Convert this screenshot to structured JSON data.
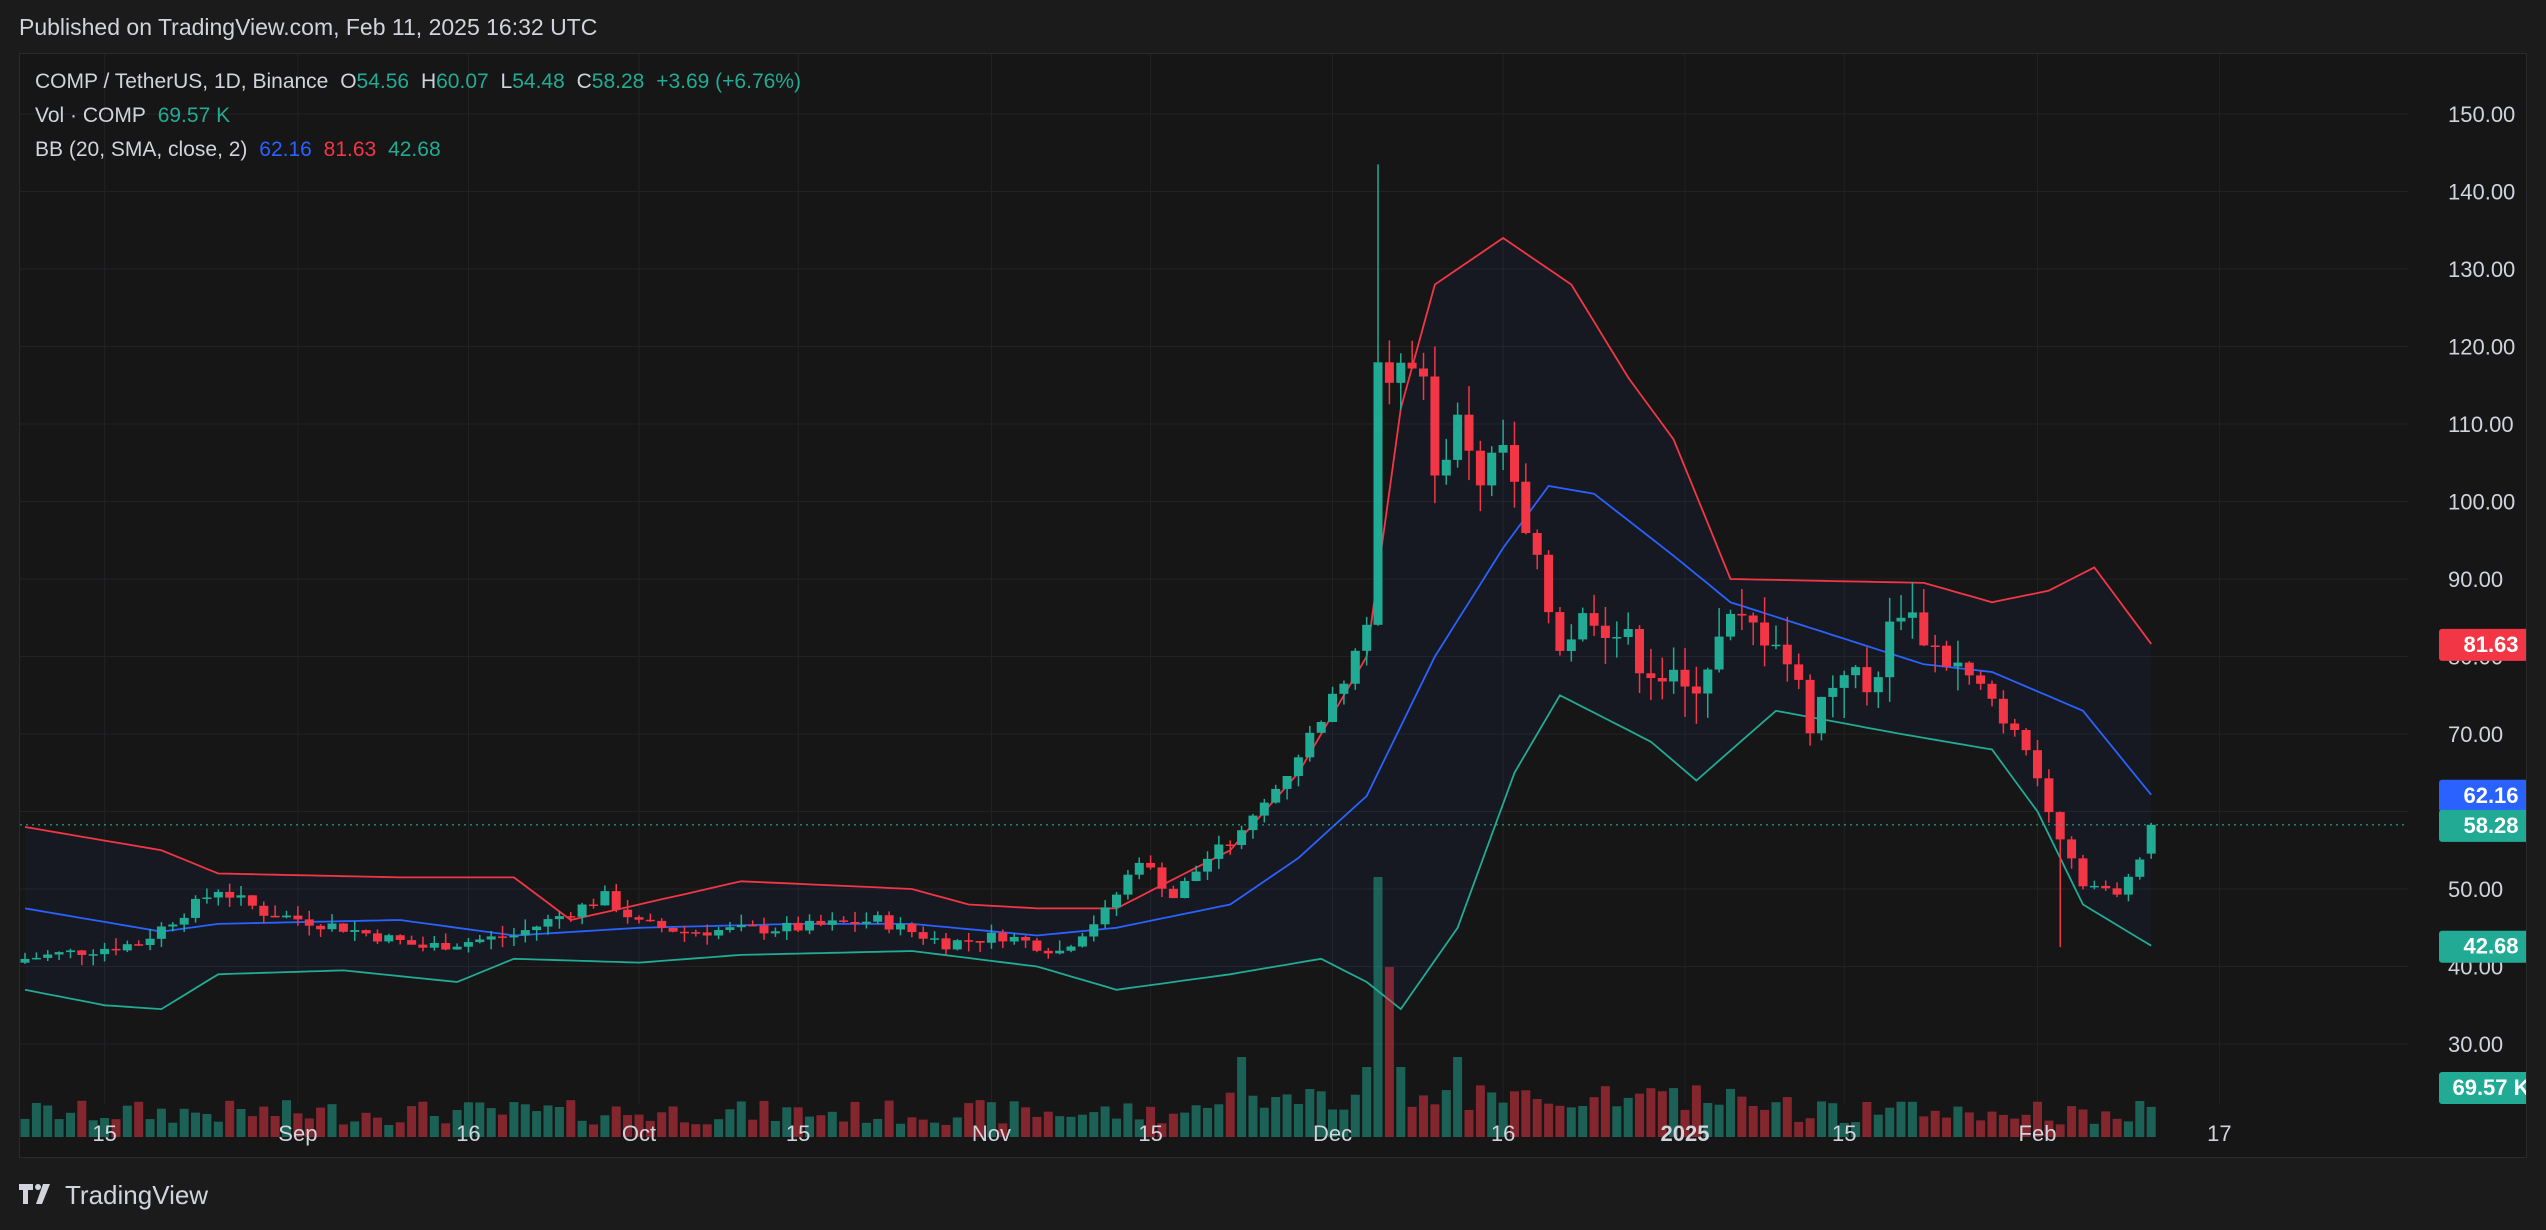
{
  "header": {
    "published": "Published on TradingView.com, Feb 11, 2025 16:32 UTC"
  },
  "legend": {
    "symbol": "COMP / TetherUS, 1D, Binance",
    "o_label": "O",
    "o": "54.56",
    "h_label": "H",
    "h": "60.07",
    "l_label": "L",
    "l": "54.48",
    "c_label": "C",
    "c": "58.28",
    "change": "+3.69 (+6.76%)",
    "vol_label": "Vol · COMP",
    "vol": "69.57 K",
    "bb_label": "BB (20, SMA, close, 2)",
    "bb_basis": "62.16",
    "bb_upper": "81.63",
    "bb_lower": "42.68"
  },
  "footer": {
    "logo": "TradingView"
  },
  "colors": {
    "up": "#22ab94",
    "down": "#f23645",
    "basis": "#2962ff",
    "upper": "#f23645",
    "lower": "#22ab94",
    "background": "#161617"
  },
  "chart_data": {
    "type": "candlestick",
    "title": "COMP / TetherUS, 1D, Binance",
    "price_axis": {
      "ticks": [
        150,
        140,
        130,
        120,
        110,
        100,
        90,
        80,
        70,
        60,
        50,
        40,
        30
      ],
      "tick_labels": [
        "150.00",
        "140.00",
        "130.00",
        "120.00",
        "110.00",
        "100.00",
        "90.00",
        "80.00",
        "70.00",
        "60.00",
        "50.00",
        "40.00",
        "30.00"
      ],
      "range": [
        24,
        154
      ]
    },
    "time_axis": {
      "labels": [
        "15",
        "Sep",
        "16",
        "Oct",
        "15",
        "Nov",
        "15",
        "Dec",
        "16",
        "2025",
        "15",
        "Feb",
        "17"
      ],
      "label_dates": [
        "2024-08-15",
        "2024-09-01",
        "2024-09-16",
        "2024-10-01",
        "2024-10-15",
        "2024-11-01",
        "2024-11-15",
        "2024-12-01",
        "2024-12-16",
        "2025-01-01",
        "2025-01-15",
        "2025-02-01",
        "2025-02-17"
      ],
      "range": [
        "2024-08-08",
        "2025-02-24"
      ]
    },
    "price_badges": [
      {
        "name": "BB upper",
        "value": "81.63",
        "color": "#f23645"
      },
      {
        "name": "BB basis",
        "value": "62.16",
        "color": "#2962ff"
      },
      {
        "name": "Last close",
        "value": "58.28",
        "color": "#22ab94"
      },
      {
        "name": "BB lower",
        "value": "42.68",
        "color": "#22ab94"
      },
      {
        "name": "Volume",
        "value": "69.57 K",
        "color": "#22ab94"
      }
    ],
    "last_close": 58.28,
    "upper_band_keys": [
      [
        "2024-08-08",
        58
      ],
      [
        "2024-08-20",
        55
      ],
      [
        "2024-08-25",
        52
      ],
      [
        "2024-09-10",
        51.5
      ],
      [
        "2024-09-20",
        51.5
      ],
      [
        "2024-09-25",
        46
      ],
      [
        "2024-10-01",
        48
      ],
      [
        "2024-10-10",
        51
      ],
      [
        "2024-10-25",
        50
      ],
      [
        "2024-10-30",
        48
      ],
      [
        "2024-11-05",
        47.5
      ],
      [
        "2024-11-12",
        47.5
      ],
      [
        "2024-11-22",
        55
      ],
      [
        "2024-11-28",
        65
      ],
      [
        "2024-12-04",
        80
      ],
      [
        "2024-12-07",
        112
      ],
      [
        "2024-12-10",
        128
      ],
      [
        "2024-12-16",
        134
      ],
      [
        "2024-12-22",
        128
      ],
      [
        "2024-12-27",
        116
      ],
      [
        "2024-12-31",
        108
      ],
      [
        "2025-01-05",
        90
      ],
      [
        "2025-01-22",
        89.5
      ],
      [
        "2025-01-28",
        87
      ],
      [
        "2025-02-02",
        88.5
      ],
      [
        "2025-02-06",
        91.5
      ],
      [
        "2025-02-11",
        81.63
      ]
    ],
    "basis_keys": [
      [
        "2024-08-08",
        47.5
      ],
      [
        "2024-08-20",
        44.5
      ],
      [
        "2024-08-25",
        45.5
      ],
      [
        "2024-09-10",
        46
      ],
      [
        "2024-09-20",
        44
      ],
      [
        "2024-10-01",
        45
      ],
      [
        "2024-10-15",
        45.5
      ],
      [
        "2024-10-25",
        45.5
      ],
      [
        "2024-11-05",
        44
      ],
      [
        "2024-11-12",
        45
      ],
      [
        "2024-11-22",
        48
      ],
      [
        "2024-11-28",
        54
      ],
      [
        "2024-12-04",
        62
      ],
      [
        "2024-12-10",
        80
      ],
      [
        "2024-12-16",
        94
      ],
      [
        "2024-12-20",
        102
      ],
      [
        "2024-12-24",
        101
      ],
      [
        "2024-12-31",
        93
      ],
      [
        "2025-01-05",
        87
      ],
      [
        "2025-01-22",
        79
      ],
      [
        "2025-01-28",
        78
      ],
      [
        "2025-02-05",
        73
      ],
      [
        "2025-02-11",
        62.16
      ]
    ],
    "lower_band_keys": [
      [
        "2024-08-08",
        37
      ],
      [
        "2024-08-15",
        35
      ],
      [
        "2024-08-20",
        34.5
      ],
      [
        "2024-08-25",
        39
      ],
      [
        "2024-09-05",
        39.5
      ],
      [
        "2024-09-15",
        38
      ],
      [
        "2024-09-20",
        41
      ],
      [
        "2024-10-01",
        40.5
      ],
      [
        "2024-10-10",
        41.5
      ],
      [
        "2024-10-25",
        42
      ],
      [
        "2024-11-05",
        40
      ],
      [
        "2024-11-12",
        37
      ],
      [
        "2024-11-22",
        39
      ],
      [
        "2024-11-30",
        41
      ],
      [
        "2024-12-04",
        38
      ],
      [
        "2024-12-07",
        34.5
      ],
      [
        "2024-12-12",
        45
      ],
      [
        "2024-12-17",
        65
      ],
      [
        "2024-12-21",
        75
      ],
      [
        "2024-12-29",
        69
      ],
      [
        "2025-01-02",
        64
      ],
      [
        "2025-01-09",
        73
      ],
      [
        "2025-01-20",
        70
      ],
      [
        "2025-01-28",
        68
      ],
      [
        "2025-02-01",
        60
      ],
      [
        "2025-02-05",
        48
      ],
      [
        "2025-02-11",
        42.68
      ]
    ],
    "close_keys": [
      [
        "2024-08-08",
        41
      ],
      [
        "2024-08-18",
        43
      ],
      [
        "2024-08-25",
        50
      ],
      [
        "2024-08-29",
        47
      ],
      [
        "2024-09-05",
        45
      ],
      [
        "2024-09-12",
        42.5
      ],
      [
        "2024-09-20",
        44
      ],
      [
        "2024-09-28",
        49
      ],
      [
        "2024-10-01",
        45.5
      ],
      [
        "2024-10-05",
        44.5
      ],
      [
        "2024-10-15",
        45
      ],
      [
        "2024-10-22",
        46
      ],
      [
        "2024-10-28",
        43
      ],
      [
        "2024-11-02",
        44
      ],
      [
        "2024-11-07",
        42
      ],
      [
        "2024-11-11",
        47
      ],
      [
        "2024-11-14",
        54
      ],
      [
        "2024-11-17",
        49
      ],
      [
        "2024-11-20",
        54
      ],
      [
        "2024-11-23",
        57
      ],
      [
        "2024-11-27",
        65
      ],
      [
        "2024-12-02",
        77
      ],
      [
        "2024-12-04",
        86
      ],
      [
        "2024-12-05",
        120
      ],
      [
        "2024-12-06",
        115
      ],
      [
        "2024-12-09",
        117
      ],
      [
        "2024-12-10",
        102
      ],
      [
        "2024-12-12",
        112
      ],
      [
        "2024-12-14",
        103
      ],
      [
        "2024-12-16",
        107
      ],
      [
        "2024-12-18",
        95
      ],
      [
        "2024-12-21",
        82
      ],
      [
        "2024-12-24",
        86
      ],
      [
        "2024-12-28",
        80
      ],
      [
        "2025-01-01",
        75
      ],
      [
        "2025-01-05",
        84
      ],
      [
        "2025-01-09",
        83
      ],
      [
        "2025-01-12",
        72
      ],
      [
        "2025-01-15",
        79
      ],
      [
        "2025-01-17",
        75
      ],
      [
        "2025-01-20",
        87
      ],
      [
        "2025-01-23",
        81
      ],
      [
        "2025-01-27",
        76
      ],
      [
        "2025-01-31",
        68
      ],
      [
        "2025-02-03",
        57
      ],
      [
        "2025-02-05",
        51
      ],
      [
        "2025-02-08",
        49
      ],
      [
        "2025-02-10",
        54.56
      ],
      [
        "2025-02-11",
        58.28
      ]
    ]
  }
}
